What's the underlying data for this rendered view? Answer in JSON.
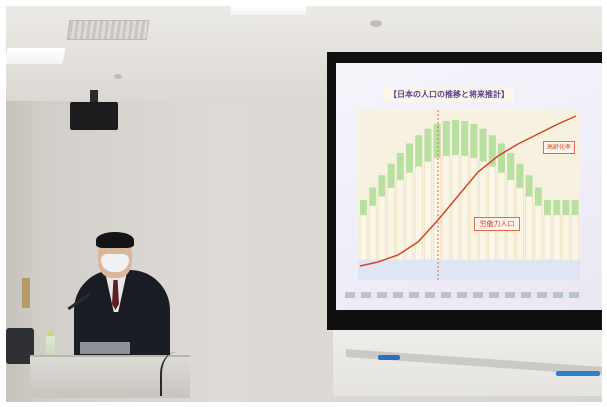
{
  "slide": {
    "title": "【日本の人口の推移と将来推計】",
    "label_workforce": "労働力人口",
    "label_aging": "高齢化率"
  },
  "colors": {
    "screen_frame": "#101010",
    "slide_bg": "#f1eff8",
    "bar_green": "#b8e0a0",
    "bar_cream": "#f4ecd4",
    "line_red": "#d8452a"
  }
}
